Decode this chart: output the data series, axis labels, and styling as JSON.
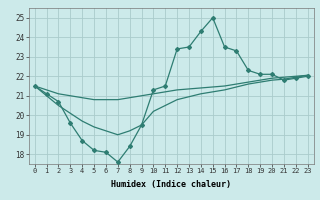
{
  "xlabel": "Humidex (Indice chaleur)",
  "bg_color": "#cceaea",
  "grid_color": "#aacccc",
  "line_color": "#2e7d72",
  "x": [
    0,
    1,
    2,
    3,
    4,
    5,
    6,
    7,
    8,
    9,
    10,
    11,
    12,
    13,
    14,
    15,
    16,
    17,
    18,
    19,
    20,
    21,
    22,
    23
  ],
  "humidex": [
    21.5,
    21.1,
    20.7,
    19.6,
    18.7,
    18.2,
    18.1,
    17.6,
    18.4,
    19.5,
    21.3,
    21.5,
    23.4,
    23.5,
    24.3,
    25.0,
    23.5,
    23.3,
    22.3,
    22.1,
    22.1,
    21.8,
    21.9,
    22.0
  ],
  "line_upper": [
    21.5,
    21.3,
    21.1,
    21.0,
    20.9,
    20.8,
    20.8,
    20.8,
    20.9,
    21.0,
    21.1,
    21.2,
    21.3,
    21.35,
    21.4,
    21.45,
    21.5,
    21.6,
    21.7,
    21.8,
    21.9,
    21.95,
    22.0,
    22.05
  ],
  "line_lower": [
    21.5,
    21.0,
    20.5,
    20.1,
    19.7,
    19.4,
    19.2,
    19.0,
    19.2,
    19.5,
    20.2,
    20.5,
    20.8,
    20.95,
    21.1,
    21.2,
    21.3,
    21.45,
    21.6,
    21.7,
    21.8,
    21.85,
    21.95,
    22.05
  ],
  "ylim": [
    17.5,
    25.5
  ],
  "yticks": [
    18,
    19,
    20,
    21,
    22,
    23,
    24,
    25
  ],
  "xticks": [
    0,
    1,
    2,
    3,
    4,
    5,
    6,
    7,
    8,
    9,
    10,
    11,
    12,
    13,
    14,
    15,
    16,
    17,
    18,
    19,
    20,
    21,
    22,
    23
  ],
  "xtick_labels": [
    "0",
    "1",
    "2",
    "3",
    "4",
    "5",
    "6",
    "7",
    "8",
    "9",
    "10",
    "11",
    "12",
    "13",
    "14",
    "15",
    "16",
    "17",
    "18",
    "19",
    "20",
    "21",
    "22",
    "23"
  ]
}
